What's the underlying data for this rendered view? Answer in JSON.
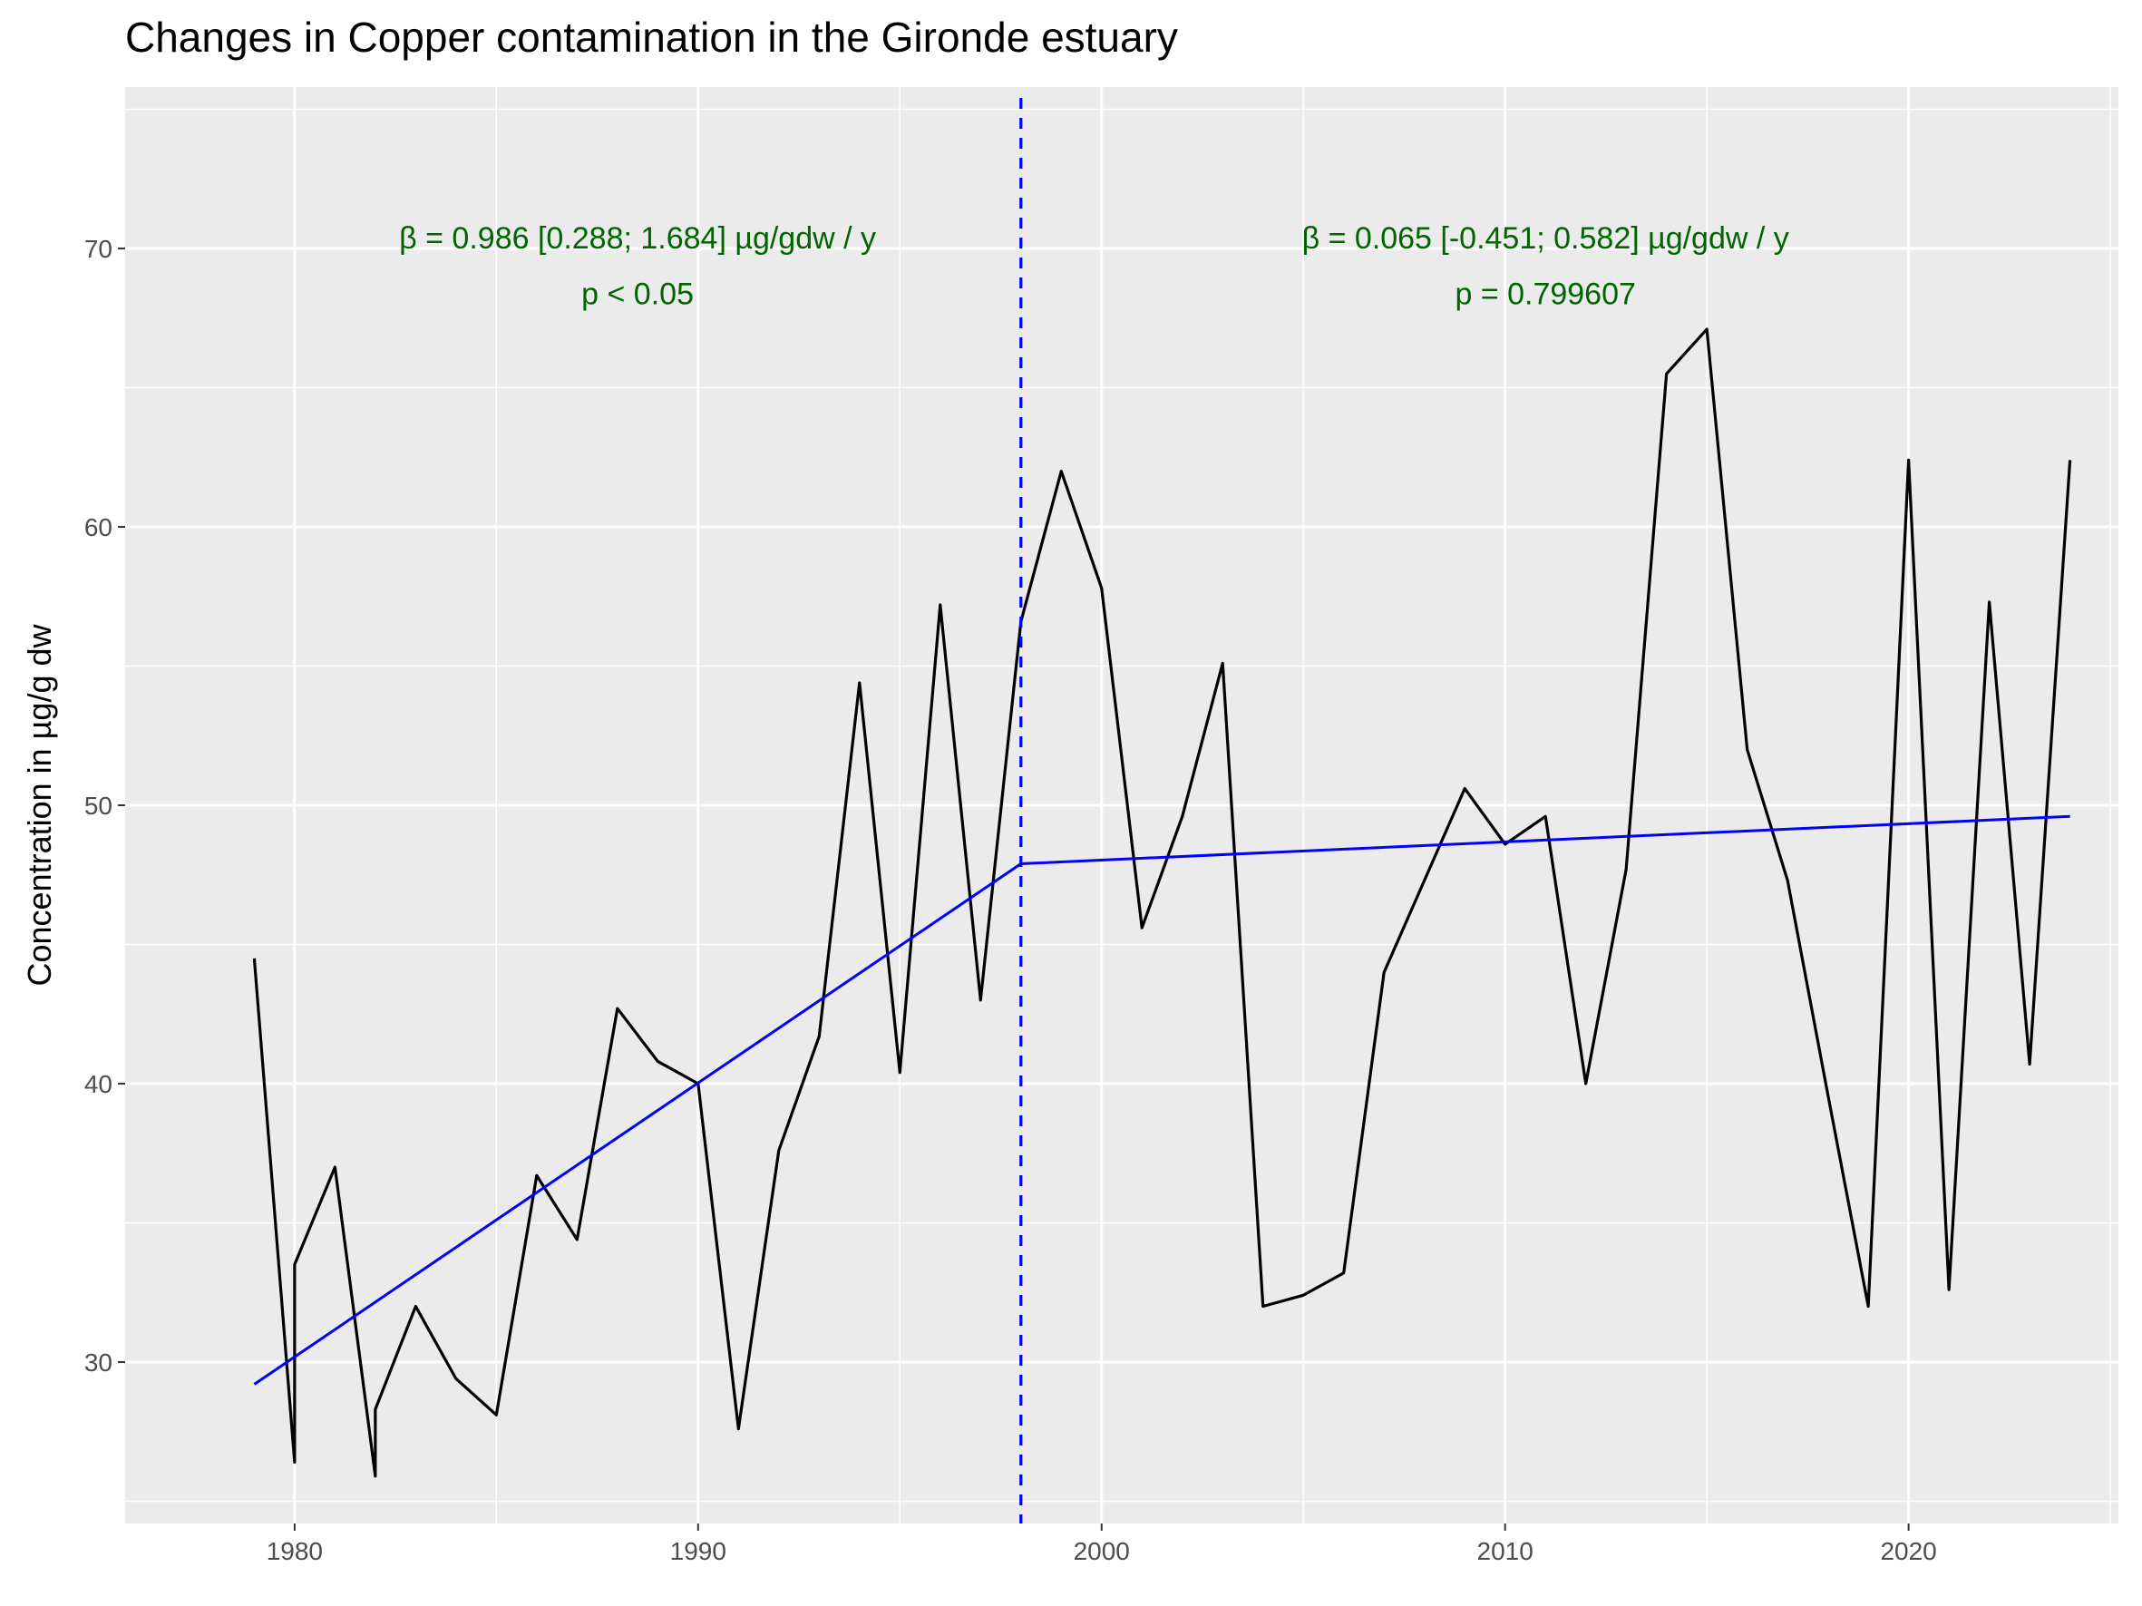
{
  "chart_data": {
    "type": "line",
    "title": "Changes in Copper contamination in the Gironde estuary",
    "xlabel": "",
    "ylabel": "Concentration in µg/g dw",
    "xlim": [
      1975.8,
      2025.2
    ],
    "ylim": [
      24.2,
      75.8
    ],
    "x_ticks": [
      1980,
      1990,
      2000,
      2010,
      2020
    ],
    "y_ticks": [
      30,
      40,
      50,
      60,
      70
    ],
    "grid": true,
    "breakpoint_year": 1998,
    "series": [
      {
        "values_x": [
          1979,
          1980,
          1980,
          1981,
          1982,
          1982,
          1983,
          1984,
          1985,
          1986,
          1987,
          1988,
          1989,
          1990,
          1991,
          1992,
          1993,
          1994,
          1995,
          1996,
          1997,
          1998,
          1999,
          2000,
          2001,
          2002,
          2003,
          2004,
          2005,
          2006,
          2007,
          2008,
          2009,
          2010,
          2011,
          2012,
          2013,
          2014,
          2015,
          2016,
          2017,
          2018,
          2019,
          2020,
          2021,
          2022,
          2023,
          2024
        ],
        "values_y": [
          44.5,
          26.4,
          33.5,
          37.0,
          25.9,
          28.3,
          32.0,
          29.4,
          28.1,
          36.7,
          34.4,
          42.7,
          40.8,
          40.0,
          27.6,
          37.6,
          41.7,
          54.4,
          40.4,
          57.2,
          43.0,
          56.6,
          62.0,
          57.8,
          45.6,
          49.6,
          55.1,
          32.0,
          32.4,
          33.2,
          44.0,
          47.3,
          50.6,
          48.6,
          49.6,
          40.0,
          47.7,
          65.5,
          67.1,
          52.0,
          47.3,
          39.6,
          32.0,
          62.4,
          32.6,
          57.3,
          40.7,
          62.4
        ],
        "color": "#000000"
      },
      {
        "values_x": [
          1979,
          1998,
          2024
        ],
        "values_y": [
          29.2,
          47.9,
          49.6
        ],
        "color": "#0000ff"
      }
    ],
    "annotations": [
      {
        "x": 1988.5,
        "y": 70.0,
        "text": "β = 0.986 [0.288; 1.684] µg/gdw / y"
      },
      {
        "x": 1988.5,
        "y": 68.0,
        "text": "p < 0.05"
      },
      {
        "x": 2011.0,
        "y": 70.0,
        "text": "β = 0.065 [-0.451; 0.582] µg/gdw / y"
      },
      {
        "x": 2011.0,
        "y": 68.0,
        "text": "p = 0.799607"
      }
    ],
    "colors": {
      "panel": "#ebebeb",
      "grid": "#ffffff",
      "data_line": "#000000",
      "trend_line": "#0000ff",
      "annotation": "#006400"
    }
  }
}
